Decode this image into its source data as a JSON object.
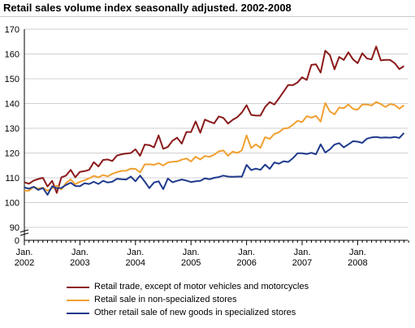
{
  "chart_data": {
    "type": "line",
    "title": "Retail sales volume index seasonally adjusted. 2002-2008",
    "xlabel": "",
    "ylabel": "",
    "y_ticks": [
      0,
      90,
      100,
      110,
      120,
      130,
      140,
      150,
      160,
      170
    ],
    "ylim": [
      90,
      170
    ],
    "axis_break": true,
    "x_ticks": [
      {
        "line1": "Jan.",
        "line2": "2002",
        "month_index": 0
      },
      {
        "line1": "Jan.",
        "line2": "2003",
        "month_index": 12
      },
      {
        "line1": "Jan.",
        "line2": "2004",
        "month_index": 24
      },
      {
        "line1": "Jan.",
        "line2": "2005",
        "month_index": 36
      },
      {
        "line1": "Jan.",
        "line2": "2006",
        "month_index": 48
      },
      {
        "line1": "Jan.",
        "line2": "2007",
        "month_index": 60
      },
      {
        "line1": "Jan.",
        "line2": "2008",
        "month_index": 72
      }
    ],
    "x_start": "2002-01",
    "x_end": "2008-11",
    "grid": true,
    "legend_position": "bottom",
    "series": [
      {
        "name": "Retail trade, except of motor vehicles and motorcycles",
        "color": "#8b1a1a",
        "values": [
          108.2,
          107.6,
          108.9,
          109.5,
          110.0,
          106.5,
          108.8,
          103.9,
          110.2,
          110.9,
          113.2,
          110.2,
          112.4,
          112.7,
          113.2,
          116.3,
          114.6,
          117.2,
          117.4,
          116.8,
          119.0,
          119.5,
          119.8,
          120.0,
          121.5,
          118.9,
          123.4,
          123.2,
          122.3,
          127.1,
          121.7,
          122.5,
          125.0,
          126.2,
          123.8,
          128.5,
          128.5,
          132.8,
          128.2,
          133.5,
          132.7,
          132.0,
          134.8,
          134.2,
          131.9,
          133.4,
          134.5,
          136.4,
          139.3,
          135.4,
          135.1,
          135.1,
          138.6,
          140.6,
          139.6,
          142.1,
          144.8,
          147.5,
          147.4,
          148.5,
          150.6,
          149.5,
          155.6,
          155.8,
          152.5,
          161.3,
          159.6,
          153.8,
          158.8,
          157.6,
          160.7,
          157.8,
          156.3,
          160.3,
          158.2,
          157.8,
          163.0,
          157.4,
          157.6,
          157.6,
          156.3,
          153.9,
          155.1
        ]
      },
      {
        "name": "Retail sale in non-specialized stores",
        "color": "#f0a030",
        "values": [
          104.8,
          104.8,
          106.4,
          105.6,
          106.0,
          104.8,
          105.8,
          106.8,
          105.3,
          107.9,
          109.3,
          107.4,
          108.4,
          109.0,
          109.8,
          110.8,
          110.2,
          111.1,
          110.6,
          111.6,
          112.3,
          112.8,
          112.9,
          113.7,
          113.6,
          112.2,
          115.4,
          115.5,
          115.2,
          115.9,
          115.0,
          116.2,
          116.5,
          116.6,
          117.3,
          117.8,
          116.6,
          118.5,
          117.4,
          118.8,
          118.5,
          119.3,
          120.7,
          121.0,
          118.9,
          120.6,
          120.0,
          121.1,
          127.1,
          122.0,
          123.5,
          122.1,
          126.4,
          125.7,
          127.7,
          128.4,
          129.9,
          130.1,
          131.4,
          133.0,
          132.5,
          134.9,
          134.3,
          135.0,
          132.7,
          140.2,
          136.8,
          135.6,
          138.4,
          138.1,
          139.6,
          137.8,
          137.5,
          139.6,
          139.6,
          139.2,
          140.6,
          139.8,
          138.6,
          139.8,
          139.4,
          137.9,
          139.3
        ]
      },
      {
        "name": "Other retail sale of new goods in specialized stores",
        "color": "#1f3a8c",
        "values": [
          106.1,
          105.6,
          106.4,
          105.1,
          105.9,
          103.1,
          106.6,
          105.8,
          105.9,
          107.1,
          108.0,
          106.7,
          106.6,
          107.8,
          107.5,
          108.4,
          107.5,
          108.8,
          108.1,
          108.4,
          109.6,
          109.4,
          109.3,
          110.5,
          108.6,
          110.9,
          108.5,
          105.8,
          108.1,
          108.6,
          105.4,
          109.7,
          108.2,
          108.8,
          109.3,
          108.9,
          108.3,
          108.6,
          108.8,
          109.8,
          109.4,
          110.0,
          110.3,
          110.9,
          110.5,
          110.4,
          110.5,
          110.5,
          115.2,
          113.1,
          113.7,
          113.2,
          115.3,
          113.6,
          116.2,
          115.7,
          116.7,
          116.4,
          117.9,
          119.9,
          119.9,
          119.6,
          120.1,
          119.5,
          123.5,
          120.2,
          121.5,
          123.4,
          124.0,
          122.3,
          123.5,
          124.8,
          124.6,
          124.1,
          125.8,
          126.3,
          126.5,
          126.2,
          126.3,
          126.2,
          126.5,
          126.1,
          128.1
        ]
      }
    ]
  }
}
